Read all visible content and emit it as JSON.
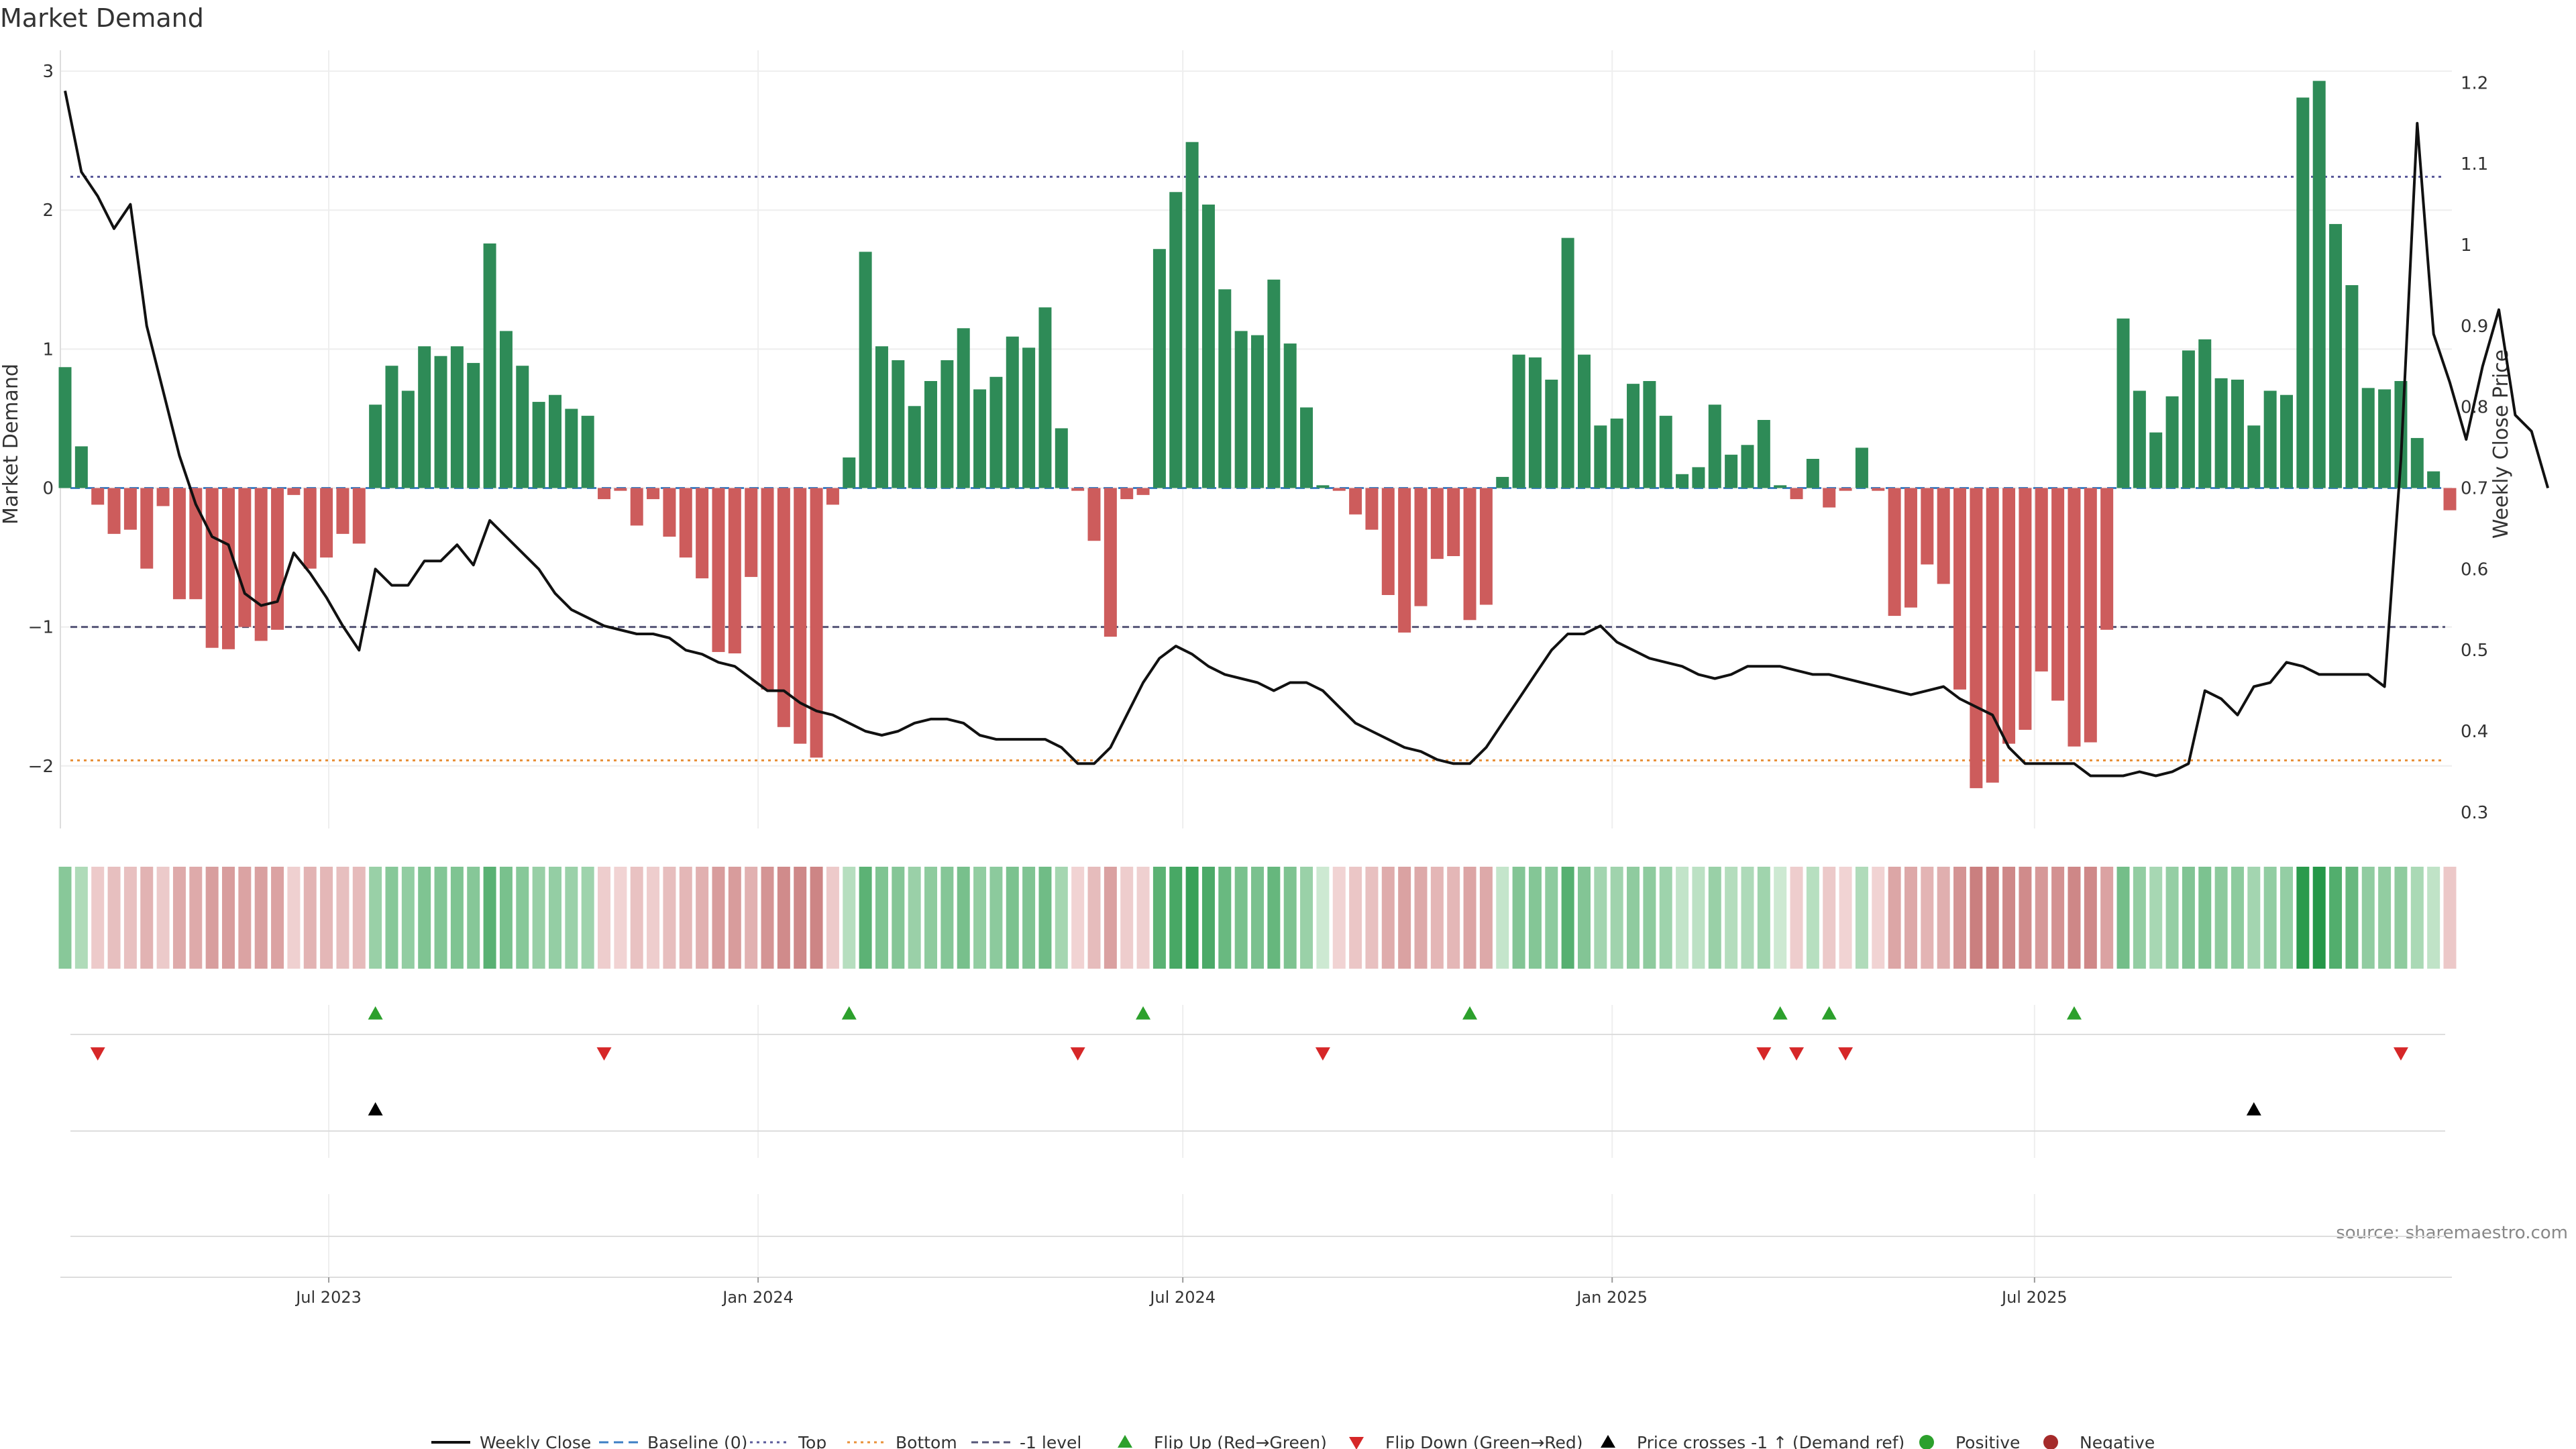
{
  "chart_data": {
    "type": "bar",
    "title": "Market Demand",
    "ylabel": "Market Demand",
    "y2label": "Weekly Close Price",
    "ylim": [
      -2.45,
      3.15
    ],
    "y_ticks": [
      -2,
      -1,
      0,
      1,
      2,
      3
    ],
    "y_tick_labels": [
      "−2",
      "−1",
      "0",
      "1",
      "2",
      "3"
    ],
    "y2lim": [
      0.28,
      1.24
    ],
    "y2_ticks": [
      0.3,
      0.4,
      0.5,
      0.6,
      0.7,
      0.8,
      0.9,
      1.0,
      1.1,
      1.2
    ],
    "y2_tick_labels": [
      "0.3",
      "0.4",
      "0.5",
      "0.6",
      "0.7",
      "0.8",
      "0.9",
      "1",
      "1.1",
      "1.2"
    ],
    "x_start": "2023-03-10",
    "x_step_days": 7,
    "x_ticks": [
      {
        "date": "2023-07-01",
        "label": "Jul 2023"
      },
      {
        "date": "2024-01-01",
        "label": "Jan 2024"
      },
      {
        "date": "2024-07-01",
        "label": "Jul 2024"
      },
      {
        "date": "2025-01-01",
        "label": "Jan 2025"
      },
      {
        "date": "2025-07-01",
        "label": "Jul 2025"
      }
    ],
    "levels": {
      "top": 2.24,
      "minus_one": -1.0,
      "bottom": -1.96,
      "baseline": 0
    },
    "demand": [
      0.87,
      0.3,
      -0.12,
      -0.33,
      -0.3,
      -0.58,
      -0.13,
      -0.8,
      -0.8,
      -1.15,
      -1.16,
      -1.0,
      -1.1,
      -1.02,
      -0.05,
      -0.58,
      -0.5,
      -0.33,
      -0.4,
      0.6,
      0.88,
      0.7,
      1.02,
      0.95,
      1.02,
      0.9,
      1.76,
      1.13,
      0.88,
      0.62,
      0.67,
      0.57,
      0.52,
      -0.08,
      -0.02,
      -0.27,
      -0.08,
      -0.35,
      -0.5,
      -0.65,
      -1.18,
      -1.19,
      -0.64,
      -1.45,
      -1.72,
      -1.84,
      -1.94,
      -0.12,
      0.22,
      1.7,
      1.02,
      0.92,
      0.59,
      0.77,
      0.92,
      1.15,
      0.71,
      0.8,
      1.09,
      1.01,
      1.3,
      0.43,
      -0.02,
      -0.38,
      -1.07,
      -0.08,
      -0.05,
      1.72,
      2.13,
      2.49,
      2.04,
      1.43,
      1.13,
      1.1,
      1.5,
      1.04,
      0.58,
      0.02,
      -0.02,
      -0.19,
      -0.3,
      -0.77,
      -1.04,
      -0.85,
      -0.51,
      -0.49,
      -0.95,
      -0.84,
      0.08,
      0.96,
      0.94,
      0.78,
      1.8,
      0.96,
      0.45,
      0.5,
      0.75,
      0.77,
      0.52,
      0.1,
      0.15,
      0.6,
      0.24,
      0.31,
      0.49,
      0.02,
      -0.08,
      0.21,
      -0.14,
      -0.02,
      0.29,
      -0.02,
      -0.92,
      -0.86,
      -0.55,
      -0.69,
      -1.45,
      -2.16,
      -2.12,
      -1.84,
      -1.74,
      -1.32,
      -1.53,
      -1.86,
      -1.83,
      -1.02,
      1.22,
      0.7,
      0.4,
      0.66,
      0.99,
      1.07,
      0.79,
      0.78,
      0.45,
      0.7,
      0.67,
      2.81,
      2.93,
      1.9,
      1.46,
      0.72,
      0.71,
      0.77,
      0.36,
      0.12,
      -0.16
    ],
    "close": [
      1.19,
      1.09,
      1.06,
      1.02,
      1.05,
      0.9,
      0.82,
      0.74,
      0.68,
      0.64,
      0.63,
      0.57,
      0.555,
      0.56,
      0.62,
      0.595,
      0.565,
      0.53,
      0.5,
      0.6,
      0.58,
      0.58,
      0.61,
      0.61,
      0.63,
      0.605,
      0.66,
      0.64,
      0.62,
      0.6,
      0.57,
      0.55,
      0.54,
      0.53,
      0.525,
      0.52,
      0.52,
      0.515,
      0.5,
      0.495,
      0.485,
      0.48,
      0.465,
      0.45,
      0.45,
      0.435,
      0.425,
      0.42,
      0.41,
      0.4,
      0.395,
      0.4,
      0.41,
      0.415,
      0.415,
      0.41,
      0.395,
      0.39,
      0.39,
      0.39,
      0.39,
      0.38,
      0.36,
      0.36,
      0.38,
      0.42,
      0.46,
      0.49,
      0.505,
      0.495,
      0.48,
      0.47,
      0.465,
      0.46,
      0.45,
      0.46,
      0.46,
      0.45,
      0.43,
      0.41,
      0.4,
      0.39,
      0.38,
      0.375,
      0.365,
      0.36,
      0.36,
      0.38,
      0.41,
      0.44,
      0.47,
      0.5,
      0.52,
      0.52,
      0.53,
      0.51,
      0.5,
      0.49,
      0.485,
      0.48,
      0.47,
      0.465,
      0.47,
      0.48,
      0.48,
      0.48,
      0.475,
      0.47,
      0.47,
      0.465,
      0.46,
      0.455,
      0.45,
      0.445,
      0.45,
      0.455,
      0.44,
      0.43,
      0.42,
      0.38,
      0.36,
      0.36,
      0.36,
      0.36,
      0.345,
      0.345,
      0.345,
      0.35,
      0.345,
      0.35,
      0.36,
      0.45,
      0.44,
      0.42,
      0.455,
      0.46,
      0.485,
      0.48,
      0.47,
      0.47,
      0.47,
      0.47,
      0.455,
      0.735,
      1.15,
      0.89,
      0.83,
      0.76,
      0.85,
      0.92,
      0.79,
      0.77,
      0.7
    ],
    "flip_up_weeks": [
      19,
      48,
      66,
      86,
      105,
      108,
      123
    ],
    "flip_down_weeks": [
      2,
      33,
      62,
      77,
      104,
      106,
      109,
      143
    ],
    "cross_weeks": [
      19,
      134
    ],
    "legend": [
      {
        "label": "Weekly Close",
        "kind": "line",
        "color": "#111111"
      },
      {
        "label": "Baseline (0)",
        "kind": "dash",
        "color": "#3d7fc4"
      },
      {
        "label": "Top",
        "kind": "dot",
        "color": "#5a5a9a"
      },
      {
        "label": "Bottom",
        "kind": "dot",
        "color": "#e8913a"
      },
      {
        "label": "-1 level",
        "kind": "dash2",
        "color": "#555577"
      },
      {
        "label": "Flip Up (Red→Green)",
        "kind": "tri-up",
        "color": "#2ca02c"
      },
      {
        "label": "Flip Down (Green→Red)",
        "kind": "tri-down",
        "color": "#d62728"
      },
      {
        "label": "Price crosses -1 ↑ (Demand ref)",
        "kind": "tri-up",
        "color": "#000000"
      },
      {
        "label": "Positive",
        "kind": "dot-marker",
        "color": "#2ca02c"
      },
      {
        "label": "Negative",
        "kind": "dot-marker",
        "color": "#a52a2a"
      }
    ],
    "source": "source: sharemaestro.com"
  },
  "colors": {
    "positive": "#2e8b57",
    "negative": "#cd5c5c",
    "close_line": "#111111",
    "grid": "#eeeeee"
  }
}
